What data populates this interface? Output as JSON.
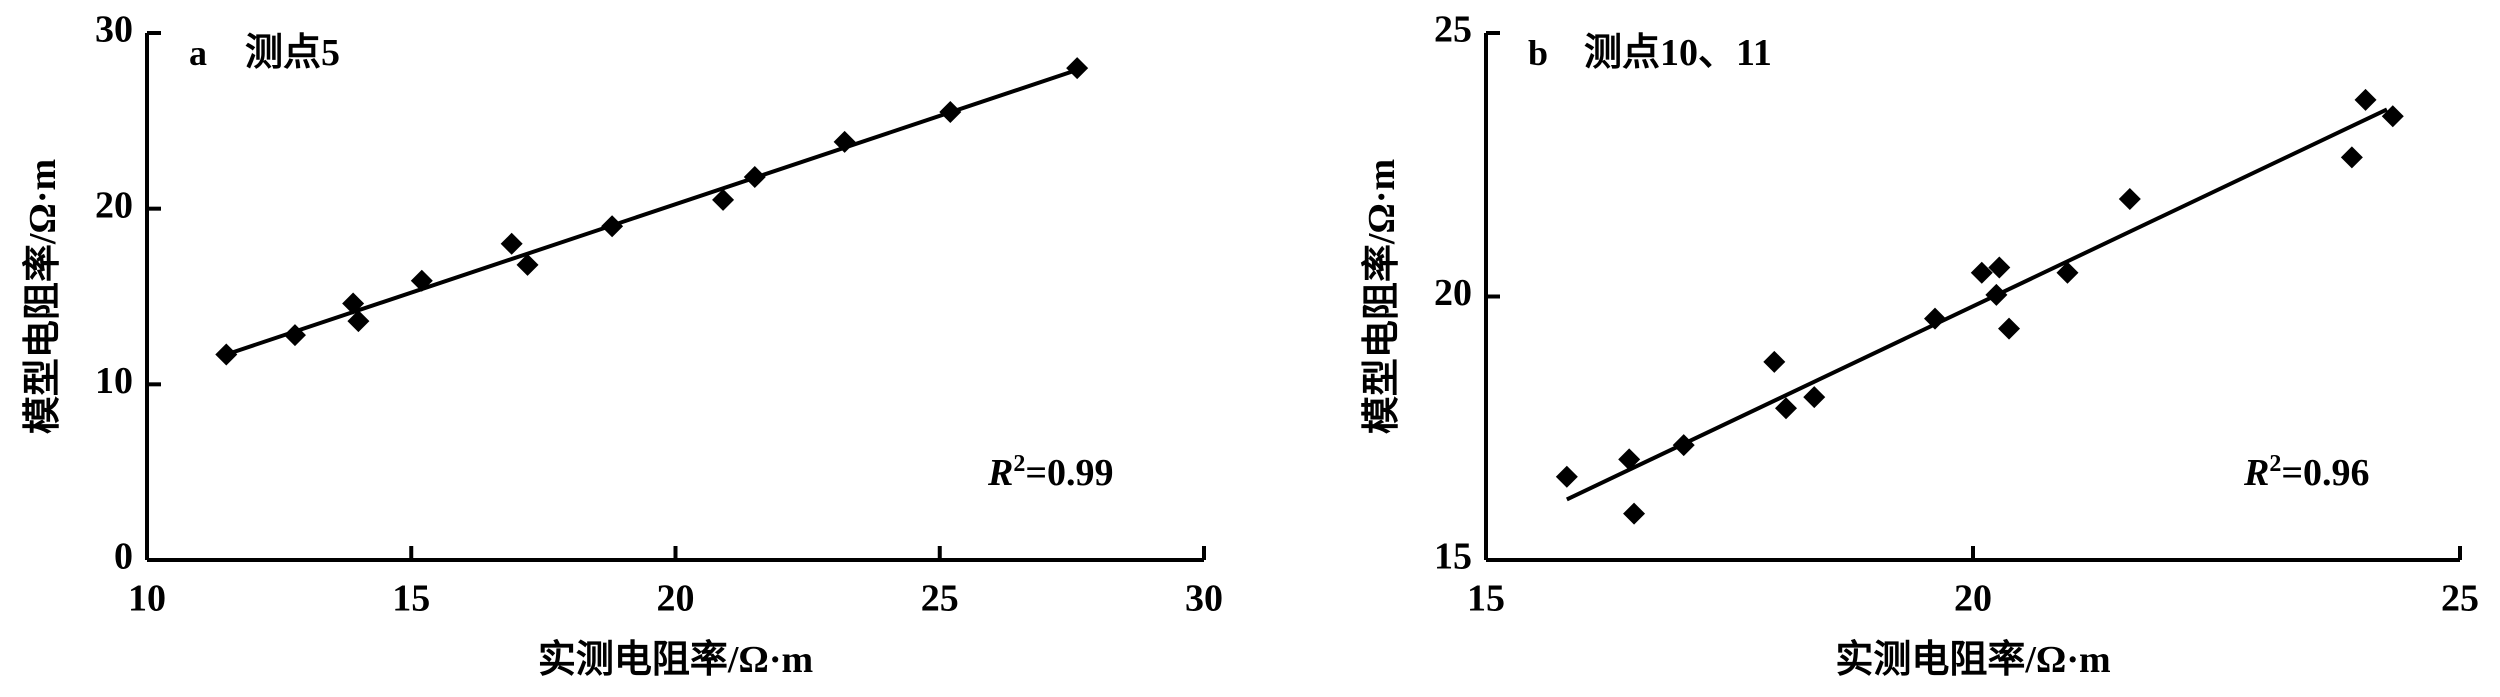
{
  "chart_data": [
    {
      "type": "scatter",
      "panel": "a",
      "title": "测点5",
      "x_label": "实测电阻率/Ω·m",
      "y_label": "模型电阻率/Ω·m",
      "xlim": [
        10,
        30
      ],
      "ylim": [
        0,
        30
      ],
      "xticks": [
        10,
        15,
        20,
        25,
        30
      ],
      "yticks": [
        0,
        10,
        20,
        30
      ],
      "color": "#000000",
      "x": [
        11.5,
        12.8,
        13.9,
        14.0,
        15.2,
        16.9,
        17.2,
        18.8,
        20.9,
        21.5,
        23.2,
        25.2,
        27.6
      ],
      "values": [
        11.7,
        12.8,
        14.6,
        13.6,
        15.9,
        18.0,
        16.8,
        19.0,
        20.5,
        21.8,
        23.8,
        25.5,
        28.0
      ],
      "fit": {
        "x": [
          11.5,
          27.6
        ],
        "y": [
          11.7,
          27.9
        ]
      },
      "annotation": {
        "italic": "R",
        "sup": "2",
        "text": "=0.99"
      }
    },
    {
      "type": "scatter",
      "panel": "b",
      "title": "测点10、11",
      "x_label": "实测电阻率/Ω·m",
      "y_label": "模型电阻率/Ω·m",
      "xlim": [
        15,
        25
      ],
      "ylim": [
        15,
        25
      ],
      "xticks": [
        15,
        20,
        25
      ],
      "yticks": [
        15,
        20,
        25
      ],
      "color": "#000000",
      "x": [
        15.83,
        16.47,
        16.52,
        17.03,
        17.96,
        18.08,
        18.37,
        19.61,
        20.09,
        20.27,
        20.24,
        20.37,
        20.97,
        21.61,
        23.89,
        24.03,
        24.31
      ],
      "values": [
        16.58,
        16.91,
        15.88,
        17.18,
        18.76,
        17.88,
        18.09,
        19.58,
        20.45,
        20.55,
        20.03,
        19.39,
        20.45,
        21.85,
        22.64,
        23.73,
        23.42
      ],
      "fit": {
        "x": [
          15.83,
          24.25
        ],
        "y": [
          16.15,
          23.55
        ]
      },
      "annotation": {
        "italic": "R",
        "sup": "2",
        "text": "=0.96"
      }
    }
  ]
}
